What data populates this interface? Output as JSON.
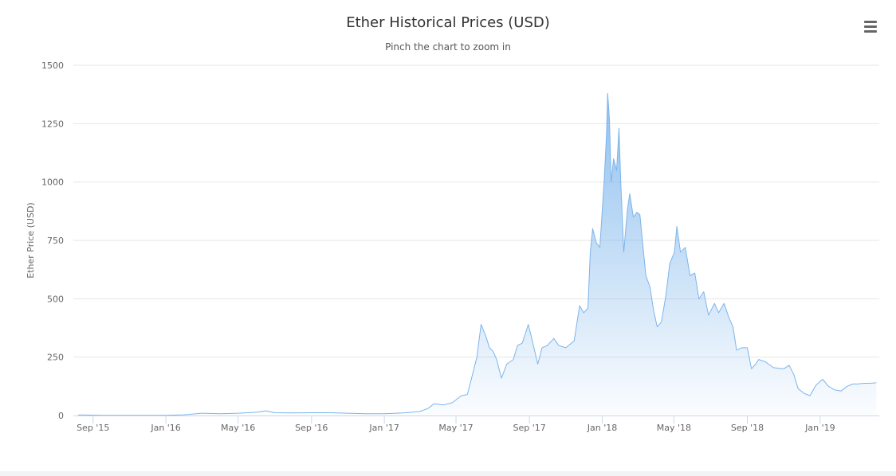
{
  "menu": {
    "icon": "hamburger-menu-icon"
  },
  "colors": {
    "line": "#7cb5ec",
    "area_top": "#7cb5ec",
    "grid": "#e6e6e6",
    "axis": "#ccd6eb"
  },
  "chart_data": {
    "type": "area",
    "title": "Ether Historical Prices (USD)",
    "subtitle": "Pinch the chart to zoom in",
    "xlabel": "",
    "ylabel": "Ether Price (USD)",
    "ylim": [
      0,
      1500
    ],
    "xlim": [
      "2015-07-30",
      "2019-04-10"
    ],
    "grid": true,
    "legend": "none",
    "y_ticks": [
      "0",
      "250",
      "500",
      "750",
      "1000",
      "1250",
      "1500"
    ],
    "x_ticks": [
      {
        "label": "Sep '15",
        "date": "2015-09-01"
      },
      {
        "label": "Jan '16",
        "date": "2016-01-01"
      },
      {
        "label": "May '16",
        "date": "2016-05-01"
      },
      {
        "label": "Sep '16",
        "date": "2016-09-01"
      },
      {
        "label": "Jan '17",
        "date": "2017-01-01"
      },
      {
        "label": "May '17",
        "date": "2017-05-01"
      },
      {
        "label": "Sep '17",
        "date": "2017-09-01"
      },
      {
        "label": "Jan '18",
        "date": "2018-01-01"
      },
      {
        "label": "May '18",
        "date": "2018-05-01"
      },
      {
        "label": "Sep '18",
        "date": "2018-09-01"
      },
      {
        "label": "Jan '19",
        "date": "2019-01-01"
      }
    ],
    "series": [
      {
        "points": [
          [
            "2015-08-07",
            2.8
          ],
          [
            "2015-09-15",
            1.0
          ],
          [
            "2015-11-01",
            1.0
          ],
          [
            "2016-01-01",
            1.0
          ],
          [
            "2016-02-01",
            3
          ],
          [
            "2016-03-01",
            10
          ],
          [
            "2016-04-01",
            8
          ],
          [
            "2016-05-01",
            10
          ],
          [
            "2016-06-01",
            14
          ],
          [
            "2016-06-17",
            20
          ],
          [
            "2016-07-01",
            12
          ],
          [
            "2016-08-01",
            11
          ],
          [
            "2016-09-01",
            12
          ],
          [
            "2016-10-01",
            12
          ],
          [
            "2016-11-01",
            10
          ],
          [
            "2016-12-01",
            8
          ],
          [
            "2017-01-01",
            8
          ],
          [
            "2017-02-01",
            11
          ],
          [
            "2017-03-01",
            17
          ],
          [
            "2017-03-15",
            30
          ],
          [
            "2017-03-25",
            50
          ],
          [
            "2017-04-10",
            45
          ],
          [
            "2017-04-25",
            55
          ],
          [
            "2017-05-10",
            85
          ],
          [
            "2017-05-20",
            90
          ],
          [
            "2017-05-28",
            170
          ],
          [
            "2017-06-05",
            250
          ],
          [
            "2017-06-12",
            390
          ],
          [
            "2017-06-20",
            340
          ],
          [
            "2017-06-26",
            290
          ],
          [
            "2017-07-02",
            275
          ],
          [
            "2017-07-08",
            240
          ],
          [
            "2017-07-16",
            160
          ],
          [
            "2017-07-25",
            220
          ],
          [
            "2017-08-05",
            240
          ],
          [
            "2017-08-12",
            300
          ],
          [
            "2017-08-20",
            310
          ],
          [
            "2017-08-30",
            390
          ],
          [
            "2017-09-05",
            330
          ],
          [
            "2017-09-15",
            220
          ],
          [
            "2017-09-22",
            290
          ],
          [
            "2017-10-01",
            300
          ],
          [
            "2017-10-12",
            330
          ],
          [
            "2017-10-20",
            300
          ],
          [
            "2017-11-01",
            290
          ],
          [
            "2017-11-15",
            320
          ],
          [
            "2017-11-24",
            470
          ],
          [
            "2017-12-01",
            440
          ],
          [
            "2017-12-08",
            460
          ],
          [
            "2017-12-12",
            700
          ],
          [
            "2017-12-16",
            800
          ],
          [
            "2017-12-22",
            740
          ],
          [
            "2017-12-28",
            720
          ],
          [
            "2018-01-04",
            1000
          ],
          [
            "2018-01-08",
            1200
          ],
          [
            "2018-01-10",
            1380
          ],
          [
            "2018-01-13",
            1270
          ],
          [
            "2018-01-16",
            1000
          ],
          [
            "2018-01-20",
            1100
          ],
          [
            "2018-01-25",
            1050
          ],
          [
            "2018-01-29",
            1230
          ],
          [
            "2018-02-01",
            1000
          ],
          [
            "2018-02-06",
            700
          ],
          [
            "2018-02-12",
            880
          ],
          [
            "2018-02-16",
            950
          ],
          [
            "2018-02-22",
            850
          ],
          [
            "2018-02-28",
            870
          ],
          [
            "2018-03-05",
            860
          ],
          [
            "2018-03-15",
            600
          ],
          [
            "2018-03-22",
            550
          ],
          [
            "2018-03-28",
            450
          ],
          [
            "2018-04-03",
            380
          ],
          [
            "2018-04-10",
            400
          ],
          [
            "2018-04-18",
            520
          ],
          [
            "2018-04-24",
            650
          ],
          [
            "2018-05-02",
            700
          ],
          [
            "2018-05-06",
            810
          ],
          [
            "2018-05-12",
            700
          ],
          [
            "2018-05-20",
            720
          ],
          [
            "2018-05-28",
            600
          ],
          [
            "2018-06-05",
            610
          ],
          [
            "2018-06-12",
            500
          ],
          [
            "2018-06-20",
            530
          ],
          [
            "2018-06-28",
            430
          ],
          [
            "2018-07-08",
            480
          ],
          [
            "2018-07-15",
            440
          ],
          [
            "2018-07-24",
            480
          ],
          [
            "2018-08-01",
            420
          ],
          [
            "2018-08-08",
            380
          ],
          [
            "2018-08-14",
            280
          ],
          [
            "2018-08-22",
            290
          ],
          [
            "2018-09-01",
            290
          ],
          [
            "2018-09-08",
            200
          ],
          [
            "2018-09-15",
            220
          ],
          [
            "2018-09-20",
            240
          ],
          [
            "2018-10-01",
            230
          ],
          [
            "2018-10-15",
            205
          ],
          [
            "2018-11-01",
            200
          ],
          [
            "2018-11-10",
            215
          ],
          [
            "2018-11-18",
            175
          ],
          [
            "2018-11-25",
            115
          ],
          [
            "2018-12-05",
            95
          ],
          [
            "2018-12-15",
            85
          ],
          [
            "2018-12-25",
            130
          ],
          [
            "2019-01-05",
            155
          ],
          [
            "2019-01-15",
            125
          ],
          [
            "2019-01-25",
            110
          ],
          [
            "2019-02-05",
            105
          ],
          [
            "2019-02-15",
            125
          ],
          [
            "2019-02-25",
            135
          ],
          [
            "2019-03-05",
            135
          ],
          [
            "2019-03-15",
            138
          ],
          [
            "2019-03-25",
            138
          ],
          [
            "2019-04-05",
            140
          ]
        ]
      }
    ]
  }
}
